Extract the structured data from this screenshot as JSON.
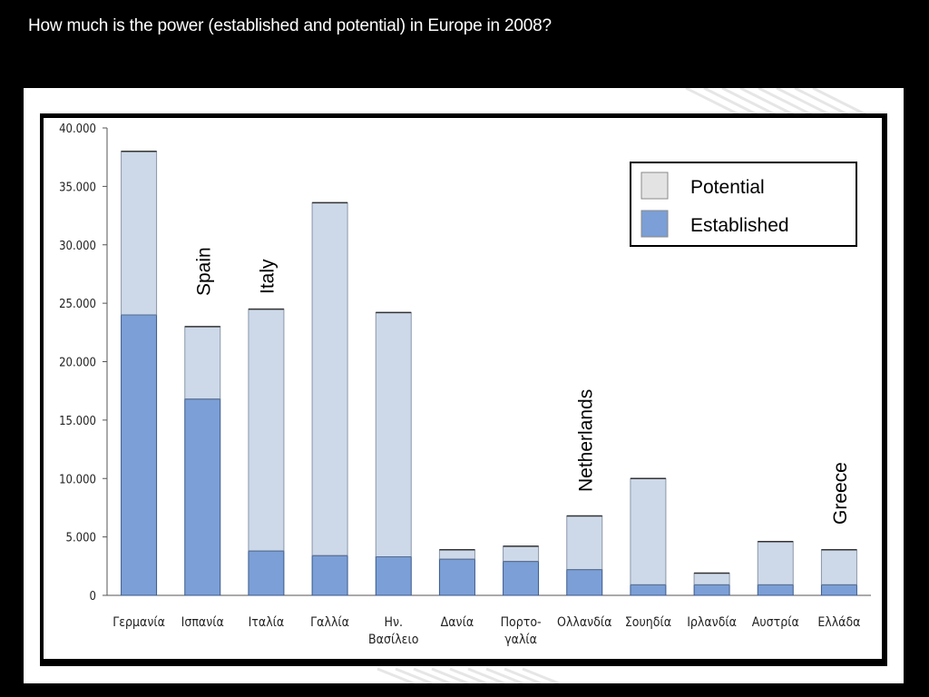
{
  "slide": {
    "title": "How much is the power (established and potential) in Europe in 2008?"
  },
  "chart_data": {
    "type": "bar",
    "stacked": true,
    "categories": [
      [
        "Γερμανία"
      ],
      [
        "Ισπανία"
      ],
      [
        "Ιταλία"
      ],
      [
        "Γαλλία"
      ],
      [
        "Ην.",
        "Βασίλειο"
      ],
      [
        "Δανία"
      ],
      [
        "Πορτο-",
        "γαλία"
      ],
      [
        "Ολλανδία"
      ],
      [
        "Σουηδία"
      ],
      [
        "Ιρλανδία"
      ],
      [
        "Αυστρία"
      ],
      [
        "Ελλάδα"
      ]
    ],
    "series": [
      {
        "name": "Established",
        "color": "#7b9fd6",
        "values": [
          24000,
          16800,
          3800,
          3400,
          3300,
          3100,
          2900,
          2200,
          900,
          900,
          900,
          900
        ]
      },
      {
        "name": "Potential",
        "color": "#cdd9e9",
        "values": [
          14000,
          6200,
          20700,
          30200,
          20900,
          800,
          1300,
          4600,
          9100,
          1000,
          3700,
          3000
        ]
      }
    ],
    "ylim": [
      0,
      40000
    ],
    "yticks": [
      "0",
      "5.000",
      "10.000",
      "15.000",
      "20.000",
      "25.000",
      "30.000",
      "35.000",
      "40.000"
    ],
    "legend": {
      "position": "top-right",
      "entries": [
        {
          "label": "Potential",
          "color": "#e3e3e3"
        },
        {
          "label": "Established",
          "color": "#7b9fd6"
        }
      ]
    },
    "annotations": [
      {
        "text": "Spain",
        "category_index": 1
      },
      {
        "text": "Italy",
        "category_index": 2
      },
      {
        "text": "Netherlands",
        "category_index": 7
      },
      {
        "text": "Greece",
        "category_index": 11
      }
    ]
  }
}
